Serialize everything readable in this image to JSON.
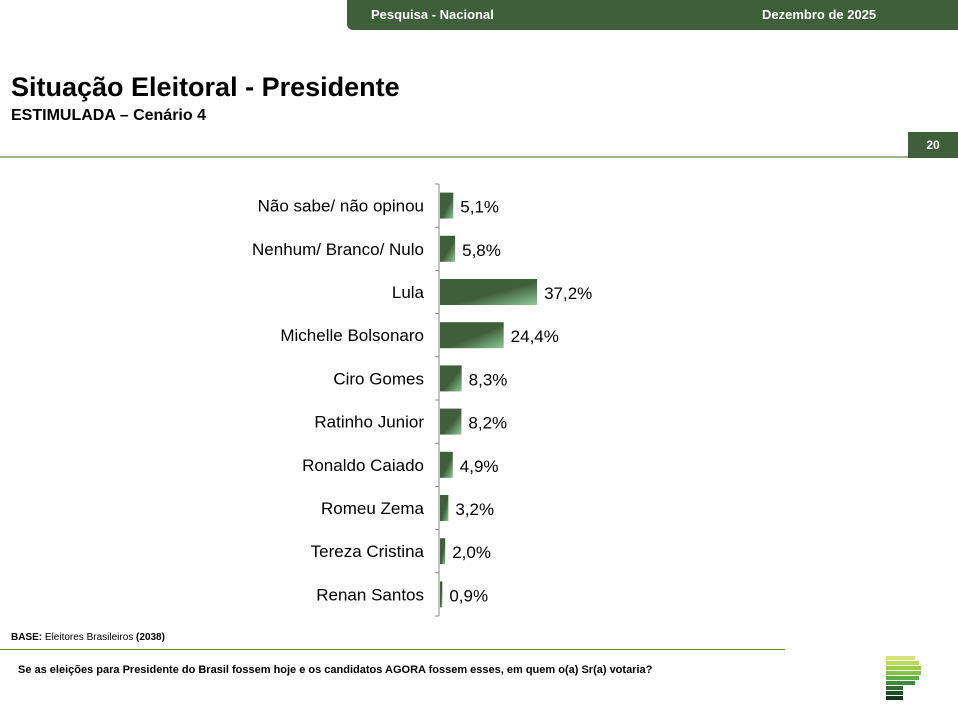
{
  "header": {
    "left": "Pesquisa - Nacional",
    "right": "Dezembro de 2025"
  },
  "title": "Situação Eleitoral - Presidente",
  "subtitle": "ESTIMULADA – Cenário 4",
  "page_number": "20",
  "footer": {
    "base_label": "BASE:",
    "base_text": " Eleitores Brasileiros ",
    "base_count": "(2038)",
    "question": "Se as eleições para Presidente do Brasil fossem hoje e os candidatos AGORA fossem esses, em quem o(a) Sr(a) votaria?"
  },
  "colors": {
    "brand": "#3f5f3a",
    "bar": "#3f5f3a",
    "bar_highlight": "#8fc89a",
    "rule": "#9ab58a"
  },
  "chart_data": {
    "type": "bar",
    "orientation": "horizontal",
    "categories": [
      "Não sabe/ não opinou",
      "Nenhum/ Branco/ Nulo",
      "Lula",
      "Michelle Bolsonaro",
      "Ciro Gomes",
      "Ratinho Junior",
      "Ronaldo Caiado",
      "Romeu Zema",
      "Tereza Cristina",
      "Renan Santos"
    ],
    "values": [
      5.1,
      5.8,
      37.2,
      24.4,
      8.3,
      8.2,
      4.9,
      3.2,
      2.0,
      0.9
    ],
    "labels": [
      "5,1%",
      "5,8%",
      "37,2%",
      "24,4%",
      "8,3%",
      "8,2%",
      "4,9%",
      "3,2%",
      "2,0%",
      "0,9%"
    ],
    "unit": "%",
    "grid": false
  }
}
